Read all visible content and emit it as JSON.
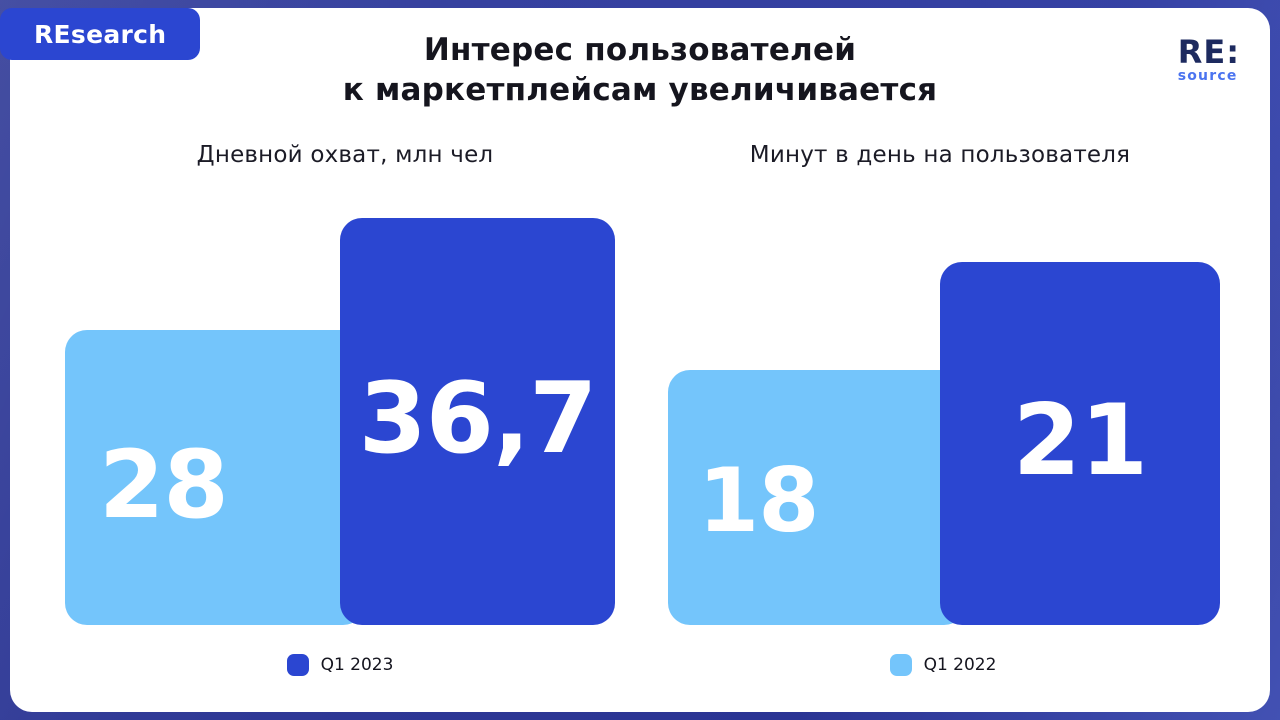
{
  "badge": {
    "label": "REsearch"
  },
  "logo": {
    "primary": "RE:",
    "secondary": "source"
  },
  "title": {
    "line1": "Интерес пользователей",
    "line2": "к маркетплейсам увеличивается"
  },
  "legend": [
    {
      "label": "Q1 2023",
      "color": "#2b46d1"
    },
    {
      "label": "Q1 2022",
      "color": "#74c5fb"
    }
  ],
  "charts": [
    {
      "subtitle": "Дневной охват, млн чел",
      "bars": [
        {
          "series": "Q1 2022",
          "value": 28,
          "value_label": "28",
          "color": "#74c5fb"
        },
        {
          "series": "Q1 2023",
          "value": 36.7,
          "value_label": "36,7",
          "color": "#2b46d1"
        }
      ],
      "legend_label": "Q1 2023"
    },
    {
      "subtitle": "Минут в день на пользователя",
      "bars": [
        {
          "series": "Q1 2022",
          "value": 18,
          "value_label": "18",
          "color": "#74c5fb"
        },
        {
          "series": "Q1 2023",
          "value": 21,
          "value_label": "21",
          "color": "#2b46d1"
        }
      ],
      "legend_label": "Q1 2022"
    }
  ],
  "colors": {
    "dark_blue": "#2b46d1",
    "light_blue": "#74c5fb",
    "background": "#2d3795",
    "card": "#ffffff",
    "title_text": "#15151e",
    "logo_navy": "#1d2a5f",
    "logo_blue": "#4b74f0"
  },
  "chart_data": [
    {
      "type": "bar",
      "title": "Дневной охват, млн чел",
      "categories": [
        "Q1 2022",
        "Q1 2023"
      ],
      "values": [
        28,
        36.7
      ],
      "value_labels": [
        "28",
        "36,7"
      ],
      "series_colors": [
        "#74c5fb",
        "#2b46d1"
      ],
      "grid": false,
      "legend_position": "bottom"
    },
    {
      "type": "bar",
      "title": "Минут в день на пользователя",
      "categories": [
        "Q1 2022",
        "Q1 2023"
      ],
      "values": [
        18,
        21
      ],
      "value_labels": [
        "18",
        "21"
      ],
      "series_colors": [
        "#74c5fb",
        "#2b46d1"
      ],
      "grid": false,
      "legend_position": "bottom"
    }
  ]
}
